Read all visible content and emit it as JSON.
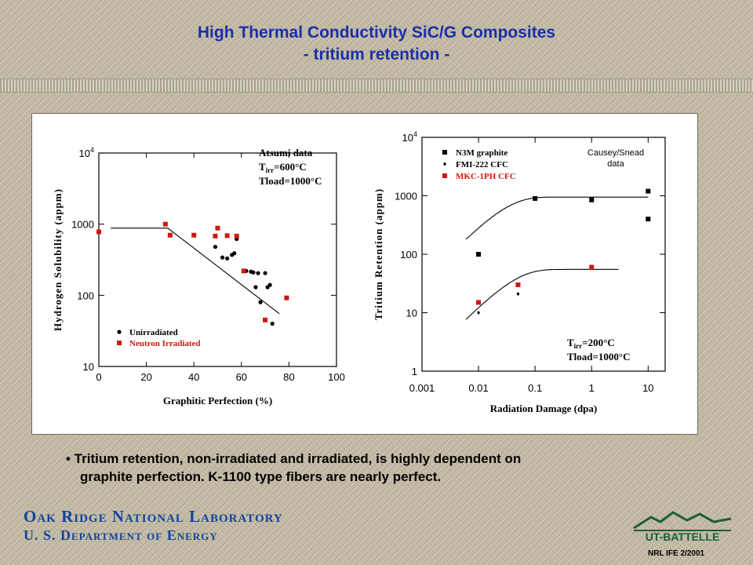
{
  "slide": {
    "title_line1": "High Thermal Conductivity SiC/G Composites",
    "title_line2": "- tritium retention -",
    "bullet_line1": "• Tritium retention, non-irradiated and irradiated, is highly dependent on",
    "bullet_line2": "graphite perfection.  K-1100 type fibers are nearly perfect.",
    "org_line1": "Oak Ridge National Laboratory",
    "org_line2": "U. S. Department of Energy",
    "logo_text": "UT-BATTELLE",
    "footer_tag": "NRL IFE 2/2001",
    "colors": {
      "title": "#1a2fa8",
      "org": "#10449c",
      "red": "#cc1a10",
      "black": "#000000"
    }
  },
  "chart_data": [
    {
      "type": "scatter",
      "xlabel": "Graphitic Perfection (%)",
      "ylabel": "Hydrogen Solubility (appm)",
      "xlim": [
        0,
        100
      ],
      "ylim": [
        10,
        10000
      ],
      "yscale": "log",
      "x_ticks": [
        "0",
        "20",
        "40",
        "60",
        "80",
        "100"
      ],
      "y_ticks": [
        {
          "base": "10",
          "exp": "4",
          "value": 10000
        },
        {
          "base": "1000",
          "exp": "",
          "value": 1000
        },
        {
          "base": "100",
          "exp": "",
          "value": 100
        },
        {
          "base": "10",
          "exp": "",
          "value": 10
        }
      ],
      "annotation": {
        "line1": "Atsumi data",
        "t_label": "T",
        "t_sub": "irr",
        "t_value": "=600°C",
        "line3": "Tload=1000°C"
      },
      "legend": [
        {
          "name": "Unirradiated",
          "color": "#000000",
          "marker": "circle"
        },
        {
          "name": "Neutron Irradiated",
          "color": "#cc1a10",
          "marker": "square"
        }
      ],
      "series": [
        {
          "name": "Unirradiated",
          "points": [
            [
              49,
              480
            ],
            [
              52,
              340
            ],
            [
              54,
              330
            ],
            [
              56,
              370
            ],
            [
              57,
              390
            ],
            [
              58,
              620
            ],
            [
              62,
              220
            ],
            [
              64,
              215
            ],
            [
              65,
              210
            ],
            [
              66,
              130
            ],
            [
              67,
              205
            ],
            [
              68,
              80
            ],
            [
              70,
              205
            ],
            [
              71,
              130
            ],
            [
              72,
              140
            ],
            [
              73,
              40
            ]
          ]
        },
        {
          "name": "Neutron Irradiated",
          "points": [
            [
              0,
              780
            ],
            [
              28,
              1000
            ],
            [
              30,
              700
            ],
            [
              40,
              700
            ],
            [
              49,
              680
            ],
            [
              50,
              880
            ],
            [
              54,
              690
            ],
            [
              58,
              680
            ],
            [
              61,
              220
            ],
            [
              70,
              45
            ],
            [
              79,
              92
            ]
          ]
        }
      ],
      "fit": [
        [
          5,
          880
        ],
        [
          29,
          880
        ],
        [
          76,
          55
        ]
      ]
    },
    {
      "type": "scatter",
      "xlabel": "Radiation Damage (dpa)",
      "ylabel": "Tritium Retention (appm)",
      "xscale": "log",
      "yscale": "log",
      "xlim": [
        0.001,
        20
      ],
      "ylim": [
        1,
        10000
      ],
      "x_ticks": [
        {
          "label": "0.001",
          "value": 0.001
        },
        {
          "label": "0.01",
          "value": 0.01
        },
        {
          "label": "0.1",
          "value": 0.1
        },
        {
          "label": "1",
          "value": 1
        },
        {
          "label": "10",
          "value": 10
        }
      ],
      "y_ticks": [
        {
          "base": "10",
          "exp": "4",
          "value": 10000
        },
        {
          "base": "1000",
          "exp": "",
          "value": 1000
        },
        {
          "base": "100",
          "exp": "",
          "value": 100
        },
        {
          "base": "10",
          "exp": "",
          "value": 10
        },
        {
          "base": "1",
          "exp": "",
          "value": 1
        }
      ],
      "annotation_top_line1": "Causey/Snead",
      "annotation_top_line2": "data",
      "annotation_bottom": {
        "t_label": "T",
        "t_sub": "irr",
        "t_value": "=200°C",
        "line2": "Tload=1000°C"
      },
      "legend": [
        {
          "name": "N3M graphite",
          "color": "#000000",
          "marker": "square"
        },
        {
          "name": "FMI-222 CFC",
          "color": "#000000",
          "marker": "diamond"
        },
        {
          "name": "MKC-1PH CFC",
          "color": "#cc1a10",
          "marker": "square"
        }
      ],
      "series": [
        {
          "name": "N3M graphite",
          "points": [
            [
              0.01,
              100
            ],
            [
              0.1,
              900
            ],
            [
              1,
              850
            ],
            [
              10,
              1200
            ],
            [
              10,
              400
            ]
          ]
        },
        {
          "name": "FMI-222 CFC",
          "points": [
            [
              0.01,
              10
            ],
            [
              0.05,
              21
            ]
          ]
        },
        {
          "name": "MKC-1PH CFC",
          "points": [
            [
              0.01,
              15
            ],
            [
              0.05,
              30
            ],
            [
              1,
              60
            ]
          ]
        }
      ],
      "fits": [
        {
          "saturation": 950,
          "rate": 35,
          "x_start": 0.006,
          "x_end": 10
        },
        {
          "saturation": 55,
          "rate": 25,
          "x_start": 0.006,
          "x_end": 3
        }
      ]
    }
  ]
}
